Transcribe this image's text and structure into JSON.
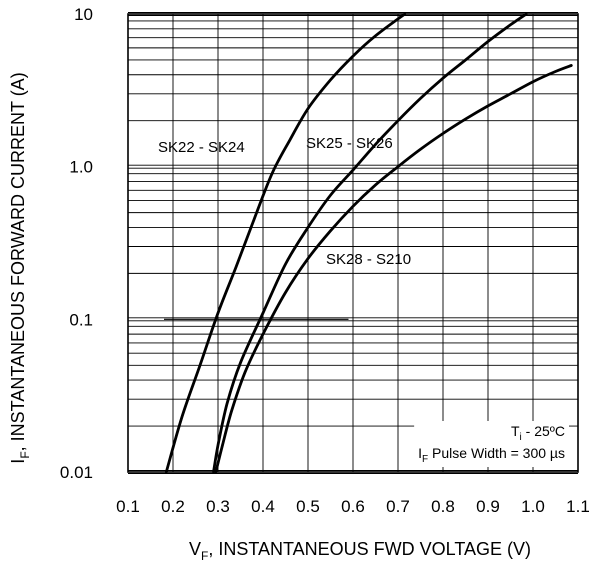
{
  "chart_data": {
    "type": "line",
    "title": "",
    "xlabel": {
      "main": "V",
      "sub": "F",
      "rest": ", INSTANTANEOUS FWD VOLTAGE (V)"
    },
    "ylabel": {
      "main": "I",
      "sub": "F",
      "rest": ", INSTANTANEOUS FORWARD CURRENT (A)"
    },
    "x_scale": "linear",
    "y_scale": "log",
    "xlim": [
      0.1,
      1.1
    ],
    "ylim": [
      0.01,
      10
    ],
    "x_ticks": [
      0.1,
      0.2,
      0.3,
      0.4,
      0.5,
      0.6,
      0.7,
      0.8,
      0.9,
      1.0,
      1.1
    ],
    "x_tick_labels": [
      "0.1",
      "0.2",
      "0.3",
      "0.4",
      "0.5",
      "0.6",
      "0.7",
      "0.8",
      "0.9",
      "1.0",
      "1.1"
    ],
    "y_ticks": [
      0.01,
      0.1,
      1.0,
      10
    ],
    "y_tick_labels": [
      "0.01",
      "0.1",
      "1.0",
      "10"
    ],
    "grid": true,
    "series": [
      {
        "name": "SK22 - SK24",
        "x": [
          0.185,
          0.22,
          0.26,
          0.3,
          0.34,
          0.38,
          0.42,
          0.46,
          0.5,
          0.55,
          0.6,
          0.65,
          0.715
        ],
        "y": [
          0.01,
          0.023,
          0.05,
          0.11,
          0.22,
          0.45,
          0.9,
          1.5,
          2.4,
          3.7,
          5.3,
          7.2,
          10
        ]
      },
      {
        "name": "SK25 - SK26",
        "x": [
          0.29,
          0.3,
          0.32,
          0.35,
          0.4,
          0.45,
          0.5,
          0.55,
          0.6,
          0.65,
          0.7,
          0.75,
          0.8,
          0.85,
          0.9,
          0.95,
          0.985
        ],
        "y": [
          0.01,
          0.015,
          0.028,
          0.052,
          0.11,
          0.23,
          0.4,
          0.65,
          0.95,
          1.4,
          2.0,
          2.8,
          3.8,
          5.0,
          6.6,
          8.5,
          10
        ]
      },
      {
        "name": "SK28 - S210",
        "x": [
          0.295,
          0.31,
          0.33,
          0.36,
          0.4,
          0.45,
          0.5,
          0.55,
          0.6,
          0.65,
          0.7,
          0.75,
          0.8,
          0.85,
          0.9,
          0.95,
          1.0,
          1.05,
          1.085
        ],
        "y": [
          0.01,
          0.015,
          0.025,
          0.045,
          0.08,
          0.15,
          0.25,
          0.38,
          0.55,
          0.76,
          1.0,
          1.3,
          1.65,
          2.05,
          2.5,
          3.0,
          3.6,
          4.2,
          4.6
        ]
      }
    ],
    "reference_line": {
      "x": [
        0.18,
        0.59
      ],
      "y": 0.1
    },
    "annotations": {
      "tj": "T",
      "tj_sub": "i",
      "tj_rest": " - 25ºC",
      "pulse": "I",
      "pulse_sub": "F",
      "pulse_rest": " Pulse Width = 300 µs"
    }
  }
}
